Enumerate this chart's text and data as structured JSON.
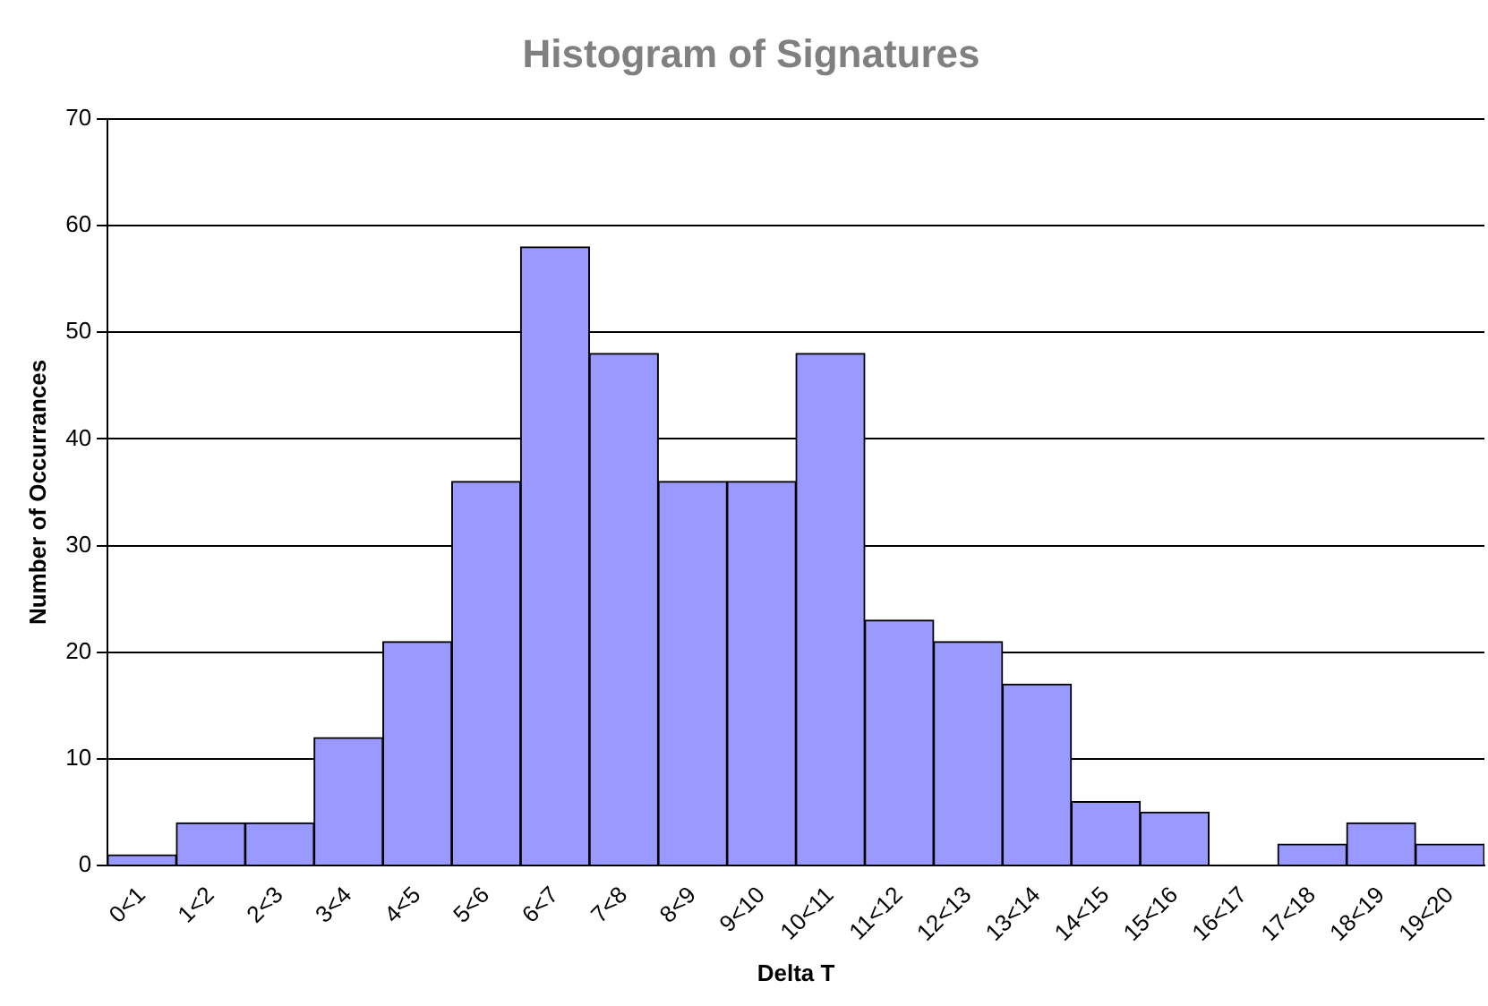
{
  "chart_data": {
    "type": "bar",
    "title": "Histogram of Signatures",
    "xlabel": "Delta T",
    "ylabel": "Number of Occurrances",
    "categories": [
      "0<1",
      "1<2",
      "2<3",
      "3<4",
      "4<5",
      "5<6",
      "6<7",
      "7<8",
      "8<9",
      "9<10",
      "10<11",
      "11<12",
      "12<13",
      "13<14",
      "14<15",
      "15<16",
      "16<17",
      "17<18",
      "18<19",
      "19<20"
    ],
    "values": [
      1,
      4,
      4,
      12,
      21,
      36,
      58,
      48,
      36,
      36,
      48,
      23,
      21,
      17,
      6,
      5,
      0,
      2,
      4,
      2
    ],
    "color": "#9999ff",
    "ylim": [
      0,
      70
    ],
    "yticks": [
      0,
      10,
      20,
      30,
      40,
      50,
      60,
      70
    ],
    "grid": "y",
    "legend": false
  }
}
